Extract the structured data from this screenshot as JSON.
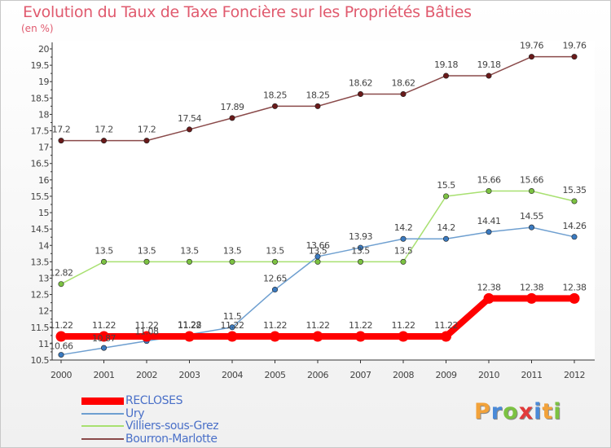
{
  "chart_data": {
    "type": "line",
    "title": "Evolution du Taux de Taxe Foncière sur les Propriétés Bâties",
    "subtitle": "(en %)",
    "categories": [
      "2000",
      "2001",
      "2002",
      "2003",
      "2004",
      "2005",
      "2006",
      "2007",
      "2008",
      "2009",
      "2010",
      "2011",
      "2012"
    ],
    "ylim": [
      10.5,
      20
    ],
    "yticks": [
      "10.5",
      "11",
      "11.5",
      "12",
      "12.5",
      "13",
      "13.5",
      "14",
      "14.5",
      "15",
      "15.5",
      "16",
      "16.5",
      "17",
      "17.5",
      "18",
      "18.5",
      "19",
      "19.5",
      "20"
    ],
    "series": [
      {
        "name": "RECLOSES",
        "color": "#ff0000",
        "values": [
          11.22,
          11.22,
          11.22,
          11.22,
          11.22,
          11.22,
          11.22,
          11.22,
          11.22,
          11.22,
          12.38,
          12.38,
          12.38
        ],
        "labels": [
          "11.22",
          "11.22",
          "11.22",
          "11.22",
          "11.22",
          "11.22",
          "11.22",
          "11.22",
          "11.22",
          "11.22",
          "12.38",
          "12.38",
          "12.38"
        ]
      },
      {
        "name": "Ury",
        "color": "#6e9fd0",
        "values": [
          10.66,
          10.87,
          11.08,
          11.28,
          11.5,
          12.65,
          13.66,
          13.93,
          14.2,
          14.2,
          14.41,
          14.55,
          14.26
        ],
        "labels": [
          "10.66",
          "10.87",
          "11.08",
          "11.28",
          "11.5",
          "12.65",
          "13.66",
          "13.93",
          "14.2",
          "14.2",
          "14.41",
          "14.55",
          "14.26"
        ]
      },
      {
        "name": "Villiers-sous-Grez",
        "color": "#a8e070",
        "values": [
          12.82,
          13.5,
          13.5,
          13.5,
          13.5,
          13.5,
          13.5,
          13.5,
          13.5,
          15.5,
          15.66,
          15.66,
          15.35
        ],
        "labels": [
          "12.82",
          "13.5",
          "13.5",
          "13.5",
          "13.5",
          "13.5",
          "13.5",
          "13.5",
          "13.5",
          "15.5",
          "15.66",
          "15.66",
          "15.35"
        ]
      },
      {
        "name": "Bourron-Marlotte",
        "color": "#8a4a4a",
        "values": [
          17.2,
          17.2,
          17.2,
          17.54,
          17.89,
          18.25,
          18.25,
          18.62,
          18.62,
          19.18,
          19.18,
          19.76,
          19.76
        ],
        "labels": [
          "17.2",
          "17.2",
          "17.2",
          "17.54",
          "17.89",
          "18.25",
          "18.25",
          "18.62",
          "18.62",
          "19.18",
          "19.18",
          "19.76",
          "19.76"
        ]
      }
    ],
    "grid": false,
    "legend": "bottom-left"
  },
  "logo": {
    "text": "Proxiti",
    "letters": [
      "P",
      "r",
      "o",
      "x",
      "i",
      "t",
      "i"
    ],
    "colors": [
      "#f2a23a",
      "#4a8ad8",
      "#7cc242",
      "#e23a3a",
      "#4a8ad8",
      "#f2a23a",
      "#7cc242"
    ]
  }
}
